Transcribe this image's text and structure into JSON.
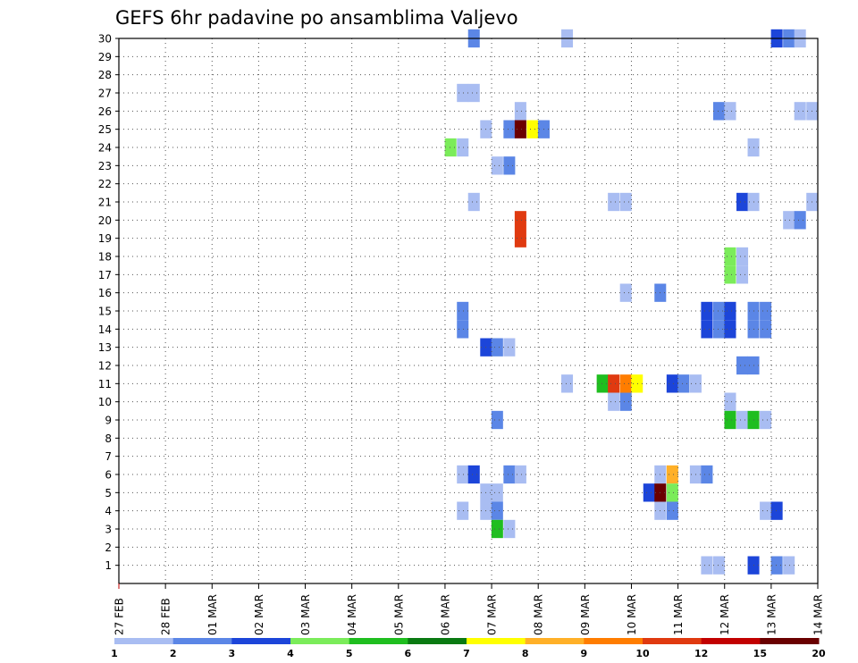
{
  "chart_data": {
    "type": "heatmap",
    "title": "GEFS 6hr padavine po ansamblima Valjevo",
    "xlabel": "",
    "ylabel": "",
    "x_ticks": [
      "27 FEB",
      "28 FEB",
      "01 MAR",
      "02 MAR",
      "03 MAR",
      "04 MAR",
      "05 MAR",
      "06 MAR",
      "07 MAR",
      "08 MAR",
      "09 MAR",
      "10 MAR",
      "11 MAR",
      "12 MAR",
      "13 MAR",
      "14 MAR"
    ],
    "x_range_days": [
      0,
      15
    ],
    "y_ticks": [
      1,
      2,
      3,
      4,
      5,
      6,
      7,
      8,
      9,
      10,
      11,
      12,
      13,
      14,
      15,
      16,
      17,
      18,
      19,
      20,
      21,
      22,
      23,
      24,
      25,
      26,
      27,
      28,
      29,
      30
    ],
    "y_range": [
      0,
      30
    ],
    "grid": true,
    "step_hours": 6,
    "legend": {
      "placement": "bottom",
      "labels": [
        "1",
        "2",
        "3",
        "4",
        "5",
        "6",
        "7",
        "8",
        "9",
        "10",
        "12",
        "15",
        "20"
      ],
      "colors": [
        "#a9bdf2",
        "#5b86e6",
        "#1c45d9",
        "#7bec5a",
        "#1fbe1f",
        "#0a7a12",
        "#ffff00",
        "#ffb028",
        "#ff7d00",
        "#e03a10",
        "#c20000",
        "#6a0000"
      ]
    },
    "cells": [
      {
        "m": 30,
        "d": 7.62,
        "n": 2
      },
      {
        "m": 30,
        "d": 9.62,
        "n": 1
      },
      {
        "m": 30,
        "d": 14.12,
        "n": 3
      },
      {
        "m": 30,
        "d": 14.38,
        "n": 2
      },
      {
        "m": 30,
        "d": 14.62,
        "n": 1
      },
      {
        "m": 27,
        "d": 7.38,
        "n": 1
      },
      {
        "m": 27,
        "d": 7.62,
        "n": 1
      },
      {
        "m": 26,
        "d": 8.62,
        "n": 1
      },
      {
        "m": 26,
        "d": 12.88,
        "n": 2
      },
      {
        "m": 26,
        "d": 13.12,
        "n": 1
      },
      {
        "m": 26,
        "d": 14.62,
        "n": 1
      },
      {
        "m": 26,
        "d": 14.88,
        "n": 1
      },
      {
        "m": 25,
        "d": 7.88,
        "n": 1
      },
      {
        "m": 25,
        "d": 8.38,
        "n": 2
      },
      {
        "m": 25,
        "d": 8.62,
        "n": 12
      },
      {
        "m": 25,
        "d": 8.88,
        "n": 7
      },
      {
        "m": 25,
        "d": 9.12,
        "n": 2
      },
      {
        "m": 24,
        "d": 7.12,
        "n": 4
      },
      {
        "m": 24,
        "d": 7.38,
        "n": 1
      },
      {
        "m": 24,
        "d": 13.62,
        "n": 1
      },
      {
        "m": 23,
        "d": 8.12,
        "n": 1
      },
      {
        "m": 23,
        "d": 8.38,
        "n": 2
      },
      {
        "m": 21,
        "d": 7.62,
        "n": 1
      },
      {
        "m": 21,
        "d": 10.62,
        "n": 1
      },
      {
        "m": 21,
        "d": 10.88,
        "n": 1
      },
      {
        "m": 21,
        "d": 13.38,
        "n": 3
      },
      {
        "m": 21,
        "d": 13.62,
        "n": 1
      },
      {
        "m": 21,
        "d": 14.88,
        "n": 1
      },
      {
        "m": 20,
        "d": 8.62,
        "n": 10
      },
      {
        "m": 20,
        "d": 14.38,
        "n": 1
      },
      {
        "m": 20,
        "d": 14.62,
        "n": 2
      },
      {
        "m": 19,
        "d": 8.62,
        "n": 10
      },
      {
        "m": 18,
        "d": 13.38,
        "n": 1
      },
      {
        "m": 18,
        "d": 13.12,
        "n": 4
      },
      {
        "m": 17,
        "d": 13.12,
        "n": 4
      },
      {
        "m": 17,
        "d": 13.38,
        "n": 1
      },
      {
        "m": 16,
        "d": 10.88,
        "n": 1
      },
      {
        "m": 16,
        "d": 11.62,
        "n": 2
      },
      {
        "m": 15,
        "d": 7.38,
        "n": 2
      },
      {
        "m": 15,
        "d": 12.62,
        "n": 3
      },
      {
        "m": 15,
        "d": 12.88,
        "n": 2
      },
      {
        "m": 15,
        "d": 13.12,
        "n": 3
      },
      {
        "m": 15,
        "d": 13.62,
        "n": 2
      },
      {
        "m": 15,
        "d": 13.88,
        "n": 2
      },
      {
        "m": 14,
        "d": 7.38,
        "n": 2
      },
      {
        "m": 14,
        "d": 12.62,
        "n": 3
      },
      {
        "m": 14,
        "d": 12.88,
        "n": 2
      },
      {
        "m": 14,
        "d": 13.12,
        "n": 3
      },
      {
        "m": 14,
        "d": 13.62,
        "n": 2
      },
      {
        "m": 14,
        "d": 13.88,
        "n": 2
      },
      {
        "m": 13,
        "d": 7.88,
        "n": 3
      },
      {
        "m": 13,
        "d": 8.12,
        "n": 2
      },
      {
        "m": 13,
        "d": 8.38,
        "n": 1
      },
      {
        "m": 12,
        "d": 13.38,
        "n": 2
      },
      {
        "m": 12,
        "d": 13.62,
        "n": 2
      },
      {
        "m": 11,
        "d": 9.62,
        "n": 1
      },
      {
        "m": 11,
        "d": 10.38,
        "n": 5
      },
      {
        "m": 11,
        "d": 10.62,
        "n": 10
      },
      {
        "m": 11,
        "d": 10.88,
        "n": 9
      },
      {
        "m": 11,
        "d": 11.12,
        "n": 7
      },
      {
        "m": 11,
        "d": 11.88,
        "n": 3
      },
      {
        "m": 11,
        "d": 12.12,
        "n": 2
      },
      {
        "m": 11,
        "d": 12.38,
        "n": 1
      },
      {
        "m": 10,
        "d": 10.62,
        "n": 1
      },
      {
        "m": 10,
        "d": 10.88,
        "n": 2
      },
      {
        "m": 10,
        "d": 13.12,
        "n": 1
      },
      {
        "m": 9,
        "d": 8.12,
        "n": 2
      },
      {
        "m": 9,
        "d": 13.12,
        "n": 5
      },
      {
        "m": 9,
        "d": 13.38,
        "n": 1
      },
      {
        "m": 9,
        "d": 13.62,
        "n": 5
      },
      {
        "m": 9,
        "d": 13.88,
        "n": 1
      },
      {
        "m": 6,
        "d": 7.38,
        "n": 1
      },
      {
        "m": 6,
        "d": 7.62,
        "n": 3
      },
      {
        "m": 6,
        "d": 8.38,
        "n": 2
      },
      {
        "m": 6,
        "d": 8.62,
        "n": 1
      },
      {
        "m": 6,
        "d": 11.62,
        "n": 1
      },
      {
        "m": 6,
        "d": 11.88,
        "n": 8
      },
      {
        "m": 6,
        "d": 12.38,
        "n": 1
      },
      {
        "m": 6,
        "d": 12.62,
        "n": 2
      },
      {
        "m": 5,
        "d": 7.88,
        "n": 1
      },
      {
        "m": 5,
        "d": 8.12,
        "n": 1
      },
      {
        "m": 5,
        "d": 11.38,
        "n": 3
      },
      {
        "m": 5,
        "d": 11.62,
        "n": 12
      },
      {
        "m": 5,
        "d": 11.88,
        "n": 4
      },
      {
        "m": 4,
        "d": 7.38,
        "n": 1
      },
      {
        "m": 4,
        "d": 7.88,
        "n": 1
      },
      {
        "m": 4,
        "d": 8.12,
        "n": 2
      },
      {
        "m": 4,
        "d": 11.62,
        "n": 1
      },
      {
        "m": 4,
        "d": 11.88,
        "n": 2
      },
      {
        "m": 4,
        "d": 13.88,
        "n": 1
      },
      {
        "m": 4,
        "d": 14.12,
        "n": 3
      },
      {
        "m": 3,
        "d": 8.12,
        "n": 5
      },
      {
        "m": 3,
        "d": 8.38,
        "n": 1
      },
      {
        "m": 1,
        "d": 12.62,
        "n": 1
      },
      {
        "m": 1,
        "d": 12.88,
        "n": 1
      },
      {
        "m": 1,
        "d": 13.62,
        "n": 3
      },
      {
        "m": 1,
        "d": 14.12,
        "n": 2
      },
      {
        "m": 1,
        "d": 14.38,
        "n": 1
      }
    ]
  }
}
